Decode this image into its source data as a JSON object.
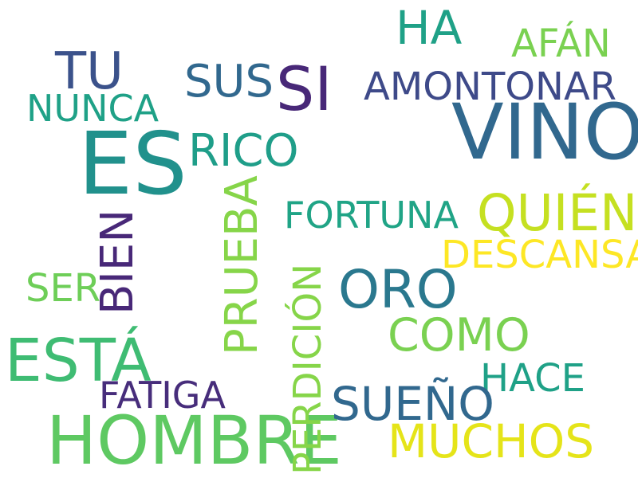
{
  "words": [
    {
      "id": "vino",
      "text": "VINO",
      "color": "#31688e"
    },
    {
      "id": "es",
      "text": "ES",
      "color": "#21918c"
    },
    {
      "id": "hombre",
      "text": "HOMBRE",
      "color": "#5ec962"
    },
    {
      "id": "esta",
      "text": "ESTÁ",
      "color": "#3fbc73"
    },
    {
      "id": "si",
      "text": "SI",
      "color": "#482878"
    },
    {
      "id": "oro",
      "text": "ORO",
      "color": "#2a788e"
    },
    {
      "id": "quien",
      "text": "QUIÉN",
      "color": "#c5e021"
    },
    {
      "id": "tu",
      "text": "TU",
      "color": "#3b528b"
    },
    {
      "id": "ha",
      "text": "HA",
      "color": "#1fa187"
    },
    {
      "id": "sus",
      "text": "SUS",
      "color": "#31688e"
    },
    {
      "id": "rico",
      "text": "RICO",
      "color": "#1f9e89"
    },
    {
      "id": "amontonar",
      "text": "AMONTONAR",
      "color": "#3e4a89"
    },
    {
      "id": "afan",
      "text": "AFÁN",
      "color": "#7ad151"
    },
    {
      "id": "nunca",
      "text": "NUNCA",
      "color": "#1fa187"
    },
    {
      "id": "fortuna",
      "text": "FORTUNA",
      "color": "#20a486"
    },
    {
      "id": "descansa",
      "text": "DESCANSA",
      "color": "#fde725"
    },
    {
      "id": "bien",
      "text": "BIEN",
      "color": "#482878"
    },
    {
      "id": "prueba",
      "text": "PRUEBA",
      "color": "#86d549"
    },
    {
      "id": "perdicion",
      "text": "PERDICIÓN",
      "color": "#86d549"
    },
    {
      "id": "ser",
      "text": "SER",
      "color": "#6ece58"
    },
    {
      "id": "como",
      "text": "COMO",
      "color": "#7ad151"
    },
    {
      "id": "hace",
      "text": "HACE",
      "color": "#1fa187"
    },
    {
      "id": "fatiga",
      "text": "FATIGA",
      "color": "#472d7b"
    },
    {
      "id": "sueno",
      "text": "SUEÑO",
      "color": "#31688e"
    },
    {
      "id": "muchos",
      "text": "MUCHOS",
      "color": "#e5e419"
    }
  ]
}
